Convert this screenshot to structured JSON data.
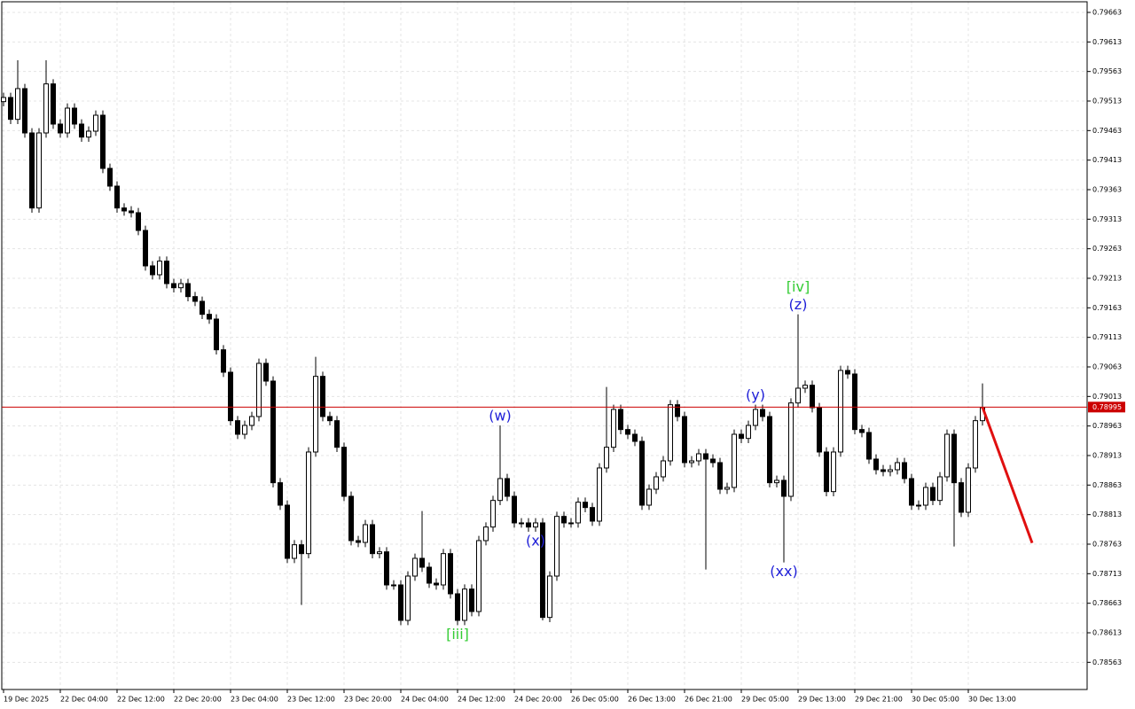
{
  "chart_data": {
    "type": "candlestick",
    "ylim": [
      0.78517,
      0.79681
    ],
    "yticks": [
      0.79663,
      0.79613,
      0.79563,
      0.79513,
      0.79463,
      0.79413,
      0.79363,
      0.79313,
      0.79263,
      0.79213,
      0.79163,
      0.79113,
      0.79063,
      0.79013,
      0.78963,
      0.78913,
      0.78863,
      0.78813,
      0.78763,
      0.78713,
      0.78663,
      0.78613,
      0.78563
    ],
    "xlim": [
      0,
      152
    ],
    "xticks": [
      {
        "value": 0,
        "label": "19 Dec 2025"
      },
      {
        "value": 8,
        "label": "22 Dec 04:00"
      },
      {
        "value": 16,
        "label": "22 Dec 12:00"
      },
      {
        "value": 24,
        "label": "22 Dec 20:00"
      },
      {
        "value": 32,
        "label": "23 Dec 04:00"
      },
      {
        "value": 40,
        "label": "23 Dec 12:00"
      },
      {
        "value": 48,
        "label": "23 Dec 20:00"
      },
      {
        "value": 56,
        "label": "24 Dec 04:00"
      },
      {
        "value": 64,
        "label": "24 Dec 12:00"
      },
      {
        "value": 72,
        "label": "24 Dec 20:00"
      },
      {
        "value": 80,
        "label": "26 Dec 05:00"
      },
      {
        "value": 88,
        "label": "26 Dec 13:00"
      },
      {
        "value": 96,
        "label": "26 Dec 21:00"
      },
      {
        "value": 104,
        "label": "29 Dec 05:00"
      },
      {
        "value": 112,
        "label": "29 Dec 13:00"
      },
      {
        "value": 120,
        "label": "29 Dec 21:00"
      },
      {
        "value": 128,
        "label": "30 Dec 05:00"
      },
      {
        "value": 136,
        "label": "30 Dec 13:00"
      }
    ],
    "grid": true,
    "bull_color": "#ffffff",
    "bear_color": "#000000",
    "open": [
      0.79512,
      0.79519,
      0.79482,
      0.79534,
      0.79459,
      0.79332,
      0.79459,
      0.79542,
      0.79474,
      0.79459,
      0.79501,
      0.79474,
      0.79452,
      0.79462,
      0.79489,
      0.79399,
      0.79369,
      0.79332,
      0.79327,
      0.79324,
      0.79294,
      0.79234,
      0.79219,
      0.79242,
      0.79204,
      0.79197,
      0.79204,
      0.79182,
      0.79174,
      0.79152,
      0.79144,
      0.79092,
      0.79054,
      0.78972,
      0.78949,
      0.78964,
      0.78979,
      0.79069,
      0.79039,
      0.78867,
      0.78829,
      0.78739,
      0.78762,
      0.78747,
      0.78919,
      0.79047,
      0.78979,
      0.78972,
      0.78927,
      0.78844,
      0.78769,
      0.78766,
      0.78796,
      0.78747,
      0.7875,
      0.78694,
      0.78694,
      0.78634,
      0.78709,
      0.78739,
      0.78724,
      0.78697,
      0.78694,
      0.78747,
      0.78679,
      0.78634,
      0.78687,
      0.78649,
      0.78769,
      0.78792,
      0.78837,
      0.78874,
      0.78844,
      0.78799,
      0.78799,
      0.78792,
      0.78799,
      0.78639,
      0.78709,
      0.7881,
      0.78799,
      0.78799,
      0.78834,
      0.78825,
      0.78802,
      0.78892,
      0.78927,
      0.78991,
      0.78957,
      0.78949,
      0.78937,
      0.78829,
      0.78856,
      0.78877,
      0.78904,
      0.78999,
      0.78979,
      0.78901,
      0.78904,
      0.78916,
      0.78907,
      0.78901,
      0.78856,
      0.78859,
      0.78949,
      0.78942,
      0.78964,
      0.78991,
      0.78979,
      0.78867,
      0.78871,
      0.78844,
      0.79002,
      0.79027,
      0.79032,
      0.78994,
      0.78919,
      0.78852,
      0.78919,
      0.79057,
      0.79051,
      0.78957,
      0.78952,
      0.78907,
      0.78889,
      0.78886,
      0.78889,
      0.78901,
      0.78874,
      0.78829,
      0.78829,
      0.78859,
      0.78837,
      0.78877,
      0.78949,
      0.78867,
      0.78817,
      0.78892,
      0.78972
    ],
    "high": [
      0.79527,
      0.79527,
      0.79582,
      0.79542,
      0.79467,
      0.79467,
      0.79582,
      0.7955,
      0.79482,
      0.79509,
      0.79509,
      0.79482,
      0.7947,
      0.79497,
      0.79497,
      0.79407,
      0.79377,
      0.7934,
      0.79335,
      0.79332,
      0.79302,
      0.79242,
      0.7925,
      0.7925,
      0.79212,
      0.79212,
      0.79212,
      0.7919,
      0.79182,
      0.7916,
      0.79152,
      0.791,
      0.79062,
      0.7898,
      0.78972,
      0.78987,
      0.79077,
      0.79077,
      0.79047,
      0.78875,
      0.78837,
      0.7877,
      0.7877,
      0.78927,
      0.7908,
      0.79055,
      0.78987,
      0.7898,
      0.78935,
      0.78852,
      0.78777,
      0.78804,
      0.78804,
      0.78758,
      0.78758,
      0.78702,
      0.78702,
      0.78717,
      0.78747,
      0.78819,
      0.78732,
      0.78705,
      0.78755,
      0.78755,
      0.78687,
      0.78695,
      0.78695,
      0.78777,
      0.788,
      0.78845,
      0.78964,
      0.78882,
      0.78852,
      0.78807,
      0.78807,
      0.78807,
      0.78807,
      0.78717,
      0.78818,
      0.78818,
      0.78807,
      0.78842,
      0.78842,
      0.78833,
      0.789,
      0.79029,
      0.78999,
      0.78999,
      0.78965,
      0.78957,
      0.78945,
      0.78864,
      0.78885,
      0.78912,
      0.79007,
      0.79007,
      0.78987,
      0.78912,
      0.78924,
      0.78924,
      0.78915,
      0.78909,
      0.78867,
      0.78957,
      0.78957,
      0.78972,
      0.78999,
      0.78999,
      0.78987,
      0.78879,
      0.78879,
      0.7901,
      0.79152,
      0.7904,
      0.7904,
      0.79002,
      0.78927,
      0.78927,
      0.79065,
      0.79065,
      0.79059,
      0.78965,
      0.7896,
      0.78915,
      0.78897,
      0.78897,
      0.78909,
      0.78909,
      0.78882,
      0.78837,
      0.78867,
      0.78867,
      0.78885,
      0.78957,
      0.78957,
      0.78875,
      0.789,
      0.7898,
      0.79035
    ],
    "low": [
      0.79504,
      0.79474,
      0.79474,
      0.79451,
      0.79324,
      0.79324,
      0.79451,
      0.79466,
      0.79451,
      0.79451,
      0.79466,
      0.79444,
      0.79444,
      0.79454,
      0.79391,
      0.79361,
      0.79324,
      0.79319,
      0.79316,
      0.79286,
      0.79226,
      0.79211,
      0.79211,
      0.79196,
      0.79189,
      0.79189,
      0.79174,
      0.79166,
      0.79144,
      0.79136,
      0.79084,
      0.79046,
      0.78964,
      0.78941,
      0.78941,
      0.78956,
      0.78971,
      0.79031,
      0.78859,
      0.78821,
      0.78731,
      0.78731,
      0.7866,
      0.78739,
      0.78911,
      0.78971,
      0.78964,
      0.78919,
      0.78836,
      0.78761,
      0.78758,
      0.78758,
      0.78739,
      0.78739,
      0.78686,
      0.78686,
      0.78626,
      0.78626,
      0.78701,
      0.78716,
      0.78689,
      0.78686,
      0.78686,
      0.78671,
      0.78626,
      0.78626,
      0.78641,
      0.78641,
      0.78761,
      0.78784,
      0.78829,
      0.78836,
      0.78791,
      0.78791,
      0.78784,
      0.78784,
      0.78634,
      0.78631,
      0.78701,
      0.78791,
      0.78791,
      0.78791,
      0.78817,
      0.78794,
      0.78794,
      0.78884,
      0.78919,
      0.78949,
      0.78941,
      0.78929,
      0.78821,
      0.78821,
      0.78848,
      0.78869,
      0.78896,
      0.78971,
      0.78893,
      0.78893,
      0.78896,
      0.7872,
      0.78893,
      0.78848,
      0.78848,
      0.78851,
      0.78934,
      0.78934,
      0.78956,
      0.78971,
      0.78859,
      0.78859,
      0.78732,
      0.78836,
      0.78994,
      0.79019,
      0.78986,
      0.78911,
      0.78844,
      0.78844,
      0.78911,
      0.79043,
      0.78949,
      0.78944,
      0.78899,
      0.78881,
      0.78878,
      0.78878,
      0.78881,
      0.78866,
      0.78821,
      0.78821,
      0.78821,
      0.78829,
      0.78829,
      0.78869,
      0.78759,
      0.78809,
      0.78809,
      0.78884,
      0.78964
    ],
    "close": [
      0.79519,
      0.79482,
      0.79534,
      0.79459,
      0.79332,
      0.79459,
      0.79542,
      0.79474,
      0.79459,
      0.79501,
      0.79474,
      0.79452,
      0.79462,
      0.79489,
      0.79399,
      0.79369,
      0.79332,
      0.79327,
      0.79324,
      0.79294,
      0.79234,
      0.79219,
      0.79242,
      0.79204,
      0.79197,
      0.79204,
      0.79182,
      0.79174,
      0.79152,
      0.79144,
      0.79092,
      0.79054,
      0.78972,
      0.78949,
      0.78964,
      0.78979,
      0.79069,
      0.79039,
      0.78867,
      0.78829,
      0.78739,
      0.78762,
      0.78747,
      0.78919,
      0.79047,
      0.78979,
      0.78972,
      0.78927,
      0.78844,
      0.78769,
      0.78766,
      0.78796,
      0.78747,
      0.7875,
      0.78694,
      0.78694,
      0.78634,
      0.78709,
      0.78739,
      0.78724,
      0.78697,
      0.78694,
      0.78747,
      0.78679,
      0.78634,
      0.78687,
      0.78649,
      0.78769,
      0.78792,
      0.78837,
      0.78874,
      0.78844,
      0.78799,
      0.78799,
      0.78792,
      0.78799,
      0.78639,
      0.78709,
      0.7881,
      0.78799,
      0.78799,
      0.78834,
      0.78825,
      0.78802,
      0.78892,
      0.78927,
      0.78991,
      0.78957,
      0.78949,
      0.78937,
      0.78829,
      0.78856,
      0.78877,
      0.78904,
      0.78999,
      0.78979,
      0.78901,
      0.78904,
      0.78916,
      0.78907,
      0.78901,
      0.78856,
      0.78859,
      0.78949,
      0.78942,
      0.78964,
      0.78991,
      0.78979,
      0.78867,
      0.78871,
      0.78844,
      0.79002,
      0.79027,
      0.79032,
      0.78994,
      0.78919,
      0.78852,
      0.78919,
      0.79057,
      0.79051,
      0.78957,
      0.78952,
      0.78907,
      0.78889,
      0.78886,
      0.78889,
      0.78901,
      0.78874,
      0.78829,
      0.78829,
      0.78859,
      0.78837,
      0.78877,
      0.78949,
      0.78867,
      0.78817,
      0.78892,
      0.78972,
      0.78994
    ],
    "current_price": 0.78995,
    "current_price_color": "#cc0000",
    "projection": {
      "x": [
        138,
        145
      ],
      "values": [
        0.78995,
        0.78765
      ],
      "color": "#e01010"
    },
    "annotations": [
      {
        "text": "(w)",
        "color": "#2020d8"
      },
      {
        "text": "[iii]",
        "color": "#33cc33"
      },
      {
        "text": "(x)",
        "color": "#2020d8"
      },
      {
        "text": "(y)",
        "color": "#2020d8"
      },
      {
        "text": "(xx)",
        "color": "#2020d8"
      },
      {
        "text": "(z)",
        "color": "#2020d8"
      },
      {
        "text": "[iv]",
        "color": "#33cc33"
      }
    ]
  }
}
